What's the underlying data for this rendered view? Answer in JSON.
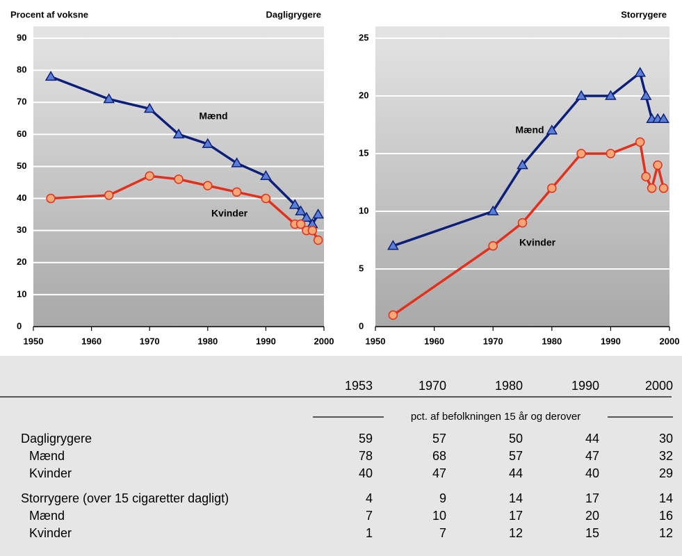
{
  "chart_data": [
    {
      "type": "line",
      "title": "Dagligrygere",
      "ylabel": "Procent af voksne",
      "xlim": [
        1950,
        2000
      ],
      "xticks": [
        1950,
        1960,
        1970,
        1980,
        1990,
        2000
      ],
      "ylim": [
        0,
        90
      ],
      "yticks": [
        0,
        10,
        20,
        30,
        40,
        50,
        60,
        70,
        80,
        90
      ],
      "grid": true,
      "series": [
        {
          "name": "Mænd",
          "color": "#0b1f7a",
          "marker": "triangle",
          "x": [
            1953,
            1963,
            1970,
            1975,
            1980,
            1985,
            1990,
            1995,
            1996,
            1997,
            1998,
            1999
          ],
          "values": [
            78,
            71,
            68,
            60,
            57,
            51,
            47,
            38,
            36,
            34,
            32,
            35
          ]
        },
        {
          "name": "Kvinder",
          "color": "#e2301c",
          "marker": "circle",
          "x": [
            1953,
            1963,
            1970,
            1975,
            1980,
            1985,
            1990,
            1995,
            1996,
            1997,
            1998,
            1999
          ],
          "values": [
            40,
            41,
            47,
            46,
            44,
            42,
            40,
            32,
            32,
            30,
            30,
            27
          ]
        }
      ]
    },
    {
      "type": "line",
      "title": "Storrygere",
      "xlim": [
        1950,
        2000
      ],
      "xticks": [
        1950,
        1960,
        1970,
        1980,
        1990,
        2000
      ],
      "ylim": [
        0,
        25
      ],
      "yticks": [
        0,
        5,
        10,
        15,
        20,
        25
      ],
      "grid": true,
      "series": [
        {
          "name": "Mænd",
          "color": "#0b1f7a",
          "marker": "triangle",
          "x": [
            1953,
            1970,
            1975,
            1980,
            1985,
            1990,
            1995,
            1996,
            1997,
            1998,
            1999
          ],
          "values": [
            7,
            10,
            14,
            17,
            20,
            20,
            22,
            20,
            18,
            18,
            18
          ]
        },
        {
          "name": "Kvinder",
          "color": "#e2301c",
          "marker": "circle",
          "x": [
            1953,
            1970,
            1975,
            1980,
            1985,
            1990,
            1995,
            1996,
            1997,
            1998,
            1999
          ],
          "values": [
            1,
            7,
            9,
            12,
            15,
            15,
            16,
            13,
            12,
            14,
            12
          ]
        }
      ]
    }
  ],
  "table": {
    "columns": [
      "1953",
      "1970",
      "1980",
      "1990",
      "2000"
    ],
    "unit": "pct. af befolkningen 15 år og derover",
    "rows": [
      {
        "label": "Dagligrygere",
        "values": [
          59,
          57,
          50,
          44,
          30
        ]
      },
      {
        "label": "Mænd",
        "values": [
          78,
          68,
          57,
          47,
          32
        ]
      },
      {
        "label": "Kvinder",
        "values": [
          40,
          47,
          44,
          40,
          29
        ]
      },
      {
        "label": "Storrygere (over 15 cigaretter dagligt)",
        "values": [
          4,
          9,
          14,
          17,
          14
        ]
      },
      {
        "label": "Mænd",
        "values": [
          7,
          10,
          17,
          20,
          16
        ]
      },
      {
        "label": "Kvinder",
        "values": [
          1,
          7,
          12,
          15,
          12
        ]
      }
    ]
  }
}
